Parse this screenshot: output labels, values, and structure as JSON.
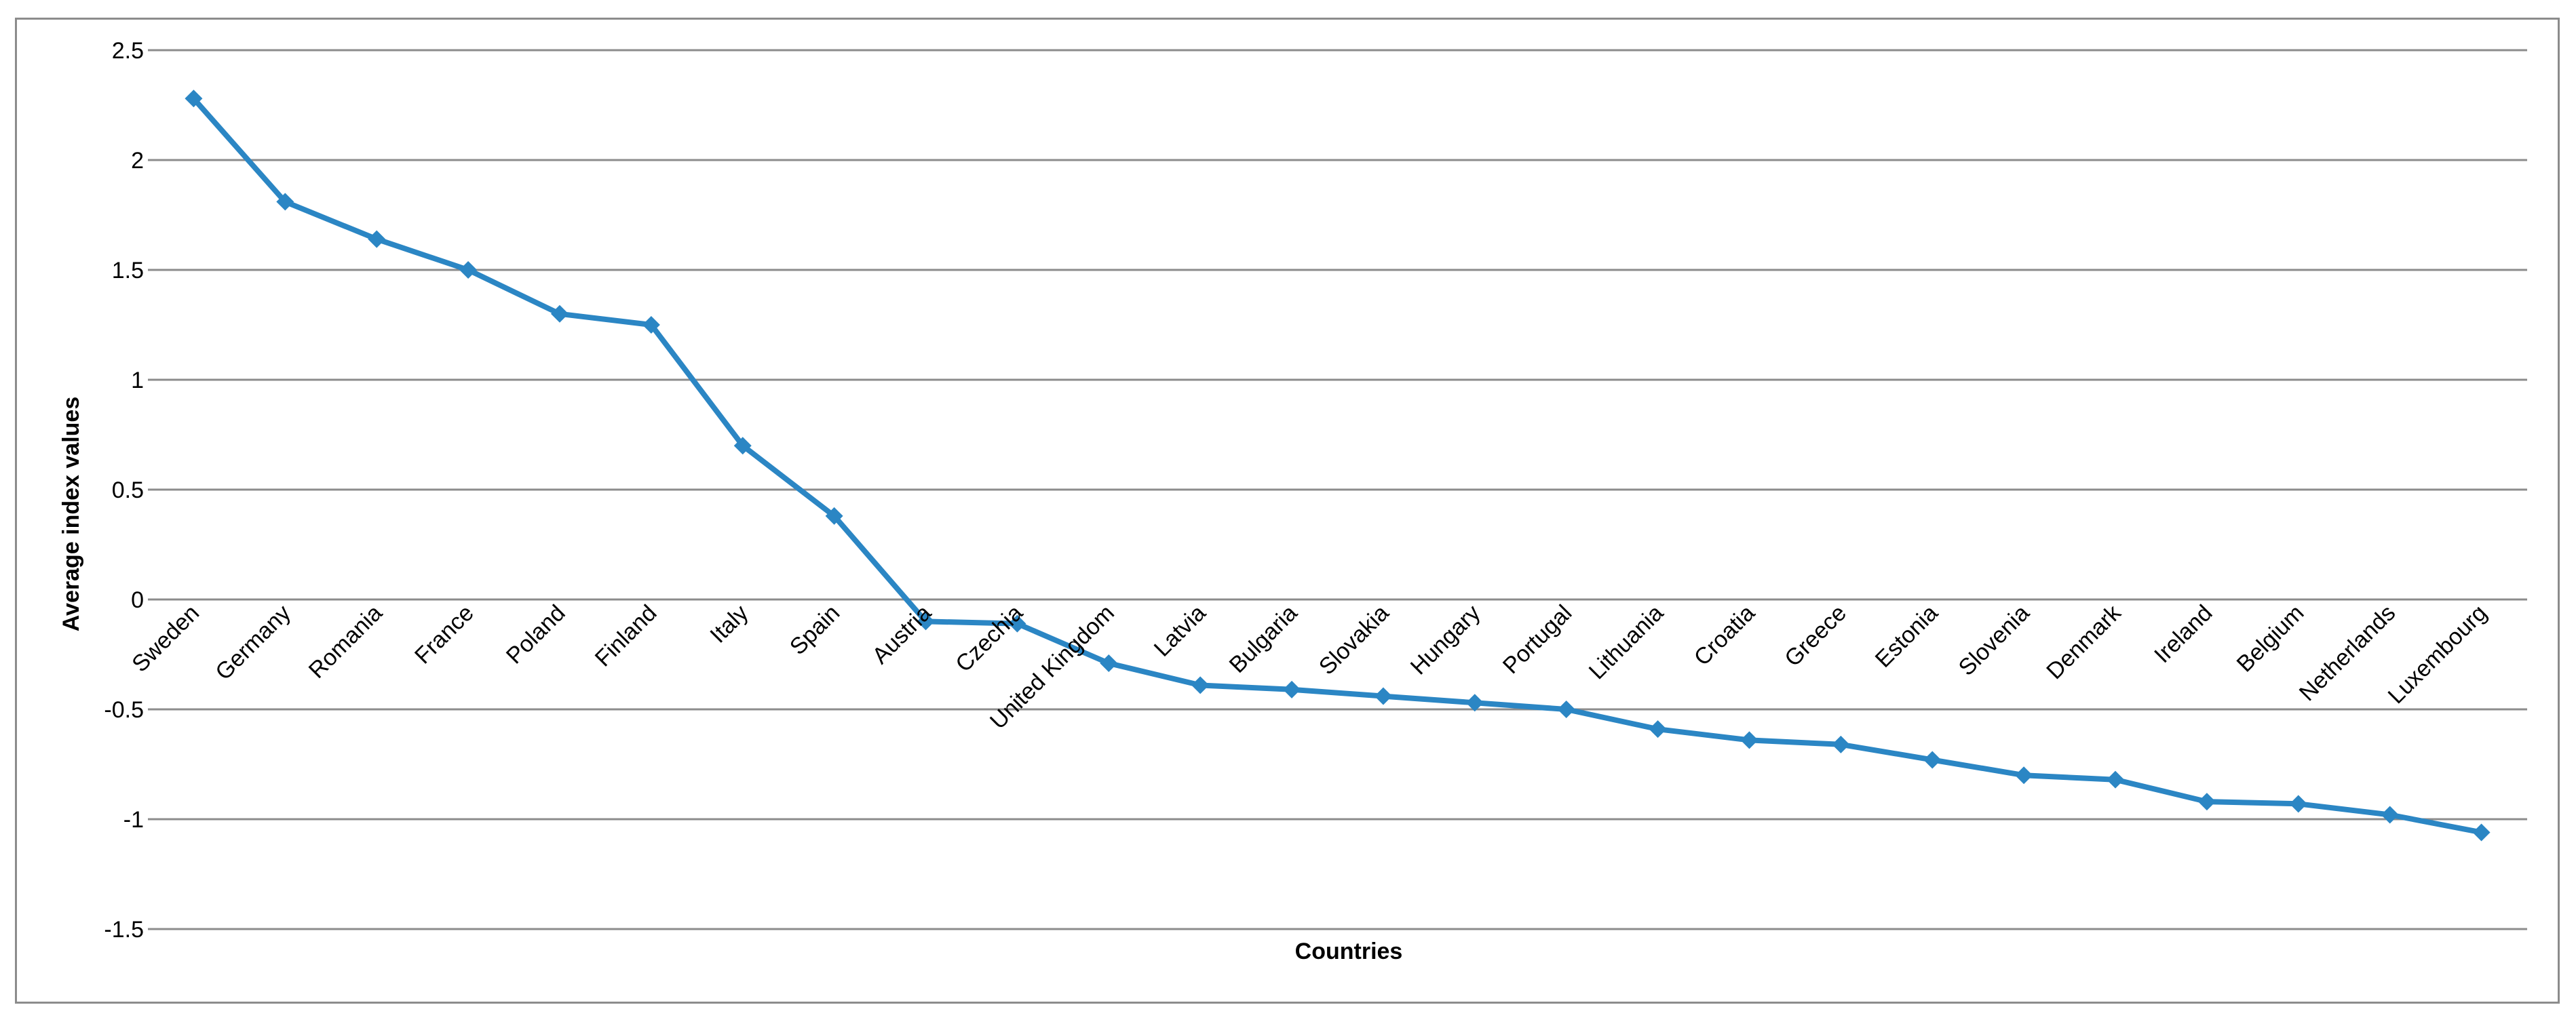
{
  "chart_data": {
    "type": "line",
    "title": "",
    "xlabel": "Countries",
    "ylabel": "Average index values",
    "ylim": [
      -1.5,
      2.5
    ],
    "yticks": [
      2.5,
      2,
      1.5,
      1,
      0.5,
      0,
      -0.5,
      -1,
      -1.5
    ],
    "ytick_labels": [
      "2.5",
      "2",
      "1.5",
      "1",
      "0.5",
      "0",
      "-0.5",
      "-1",
      "-1.5"
    ],
    "grid": true,
    "legend": "none",
    "marker": "diamond",
    "color": "#2b86c4",
    "categories": [
      "Sweden",
      "Germany",
      "Romania",
      "France",
      "Poland",
      "Finland",
      "Italy",
      "Spain",
      "Austria",
      "Czechia",
      "United Kingdom",
      "Latvia",
      "Bulgaria",
      "Slovakia",
      "Hungary",
      "Portugal",
      "Lithuania",
      "Croatia",
      "Greece",
      "Estonia",
      "Slovenia",
      "Denmark",
      "Ireland",
      "Belgium",
      "Netherlands",
      "Luxembourg"
    ],
    "values": [
      2.28,
      1.81,
      1.64,
      1.5,
      1.3,
      1.25,
      0.7,
      0.38,
      -0.1,
      -0.11,
      -0.29,
      -0.39,
      -0.41,
      -0.44,
      -0.47,
      -0.5,
      -0.59,
      -0.64,
      -0.66,
      -0.73,
      -0.8,
      -0.82,
      -0.92,
      -0.93,
      -0.98,
      -1.06
    ]
  }
}
